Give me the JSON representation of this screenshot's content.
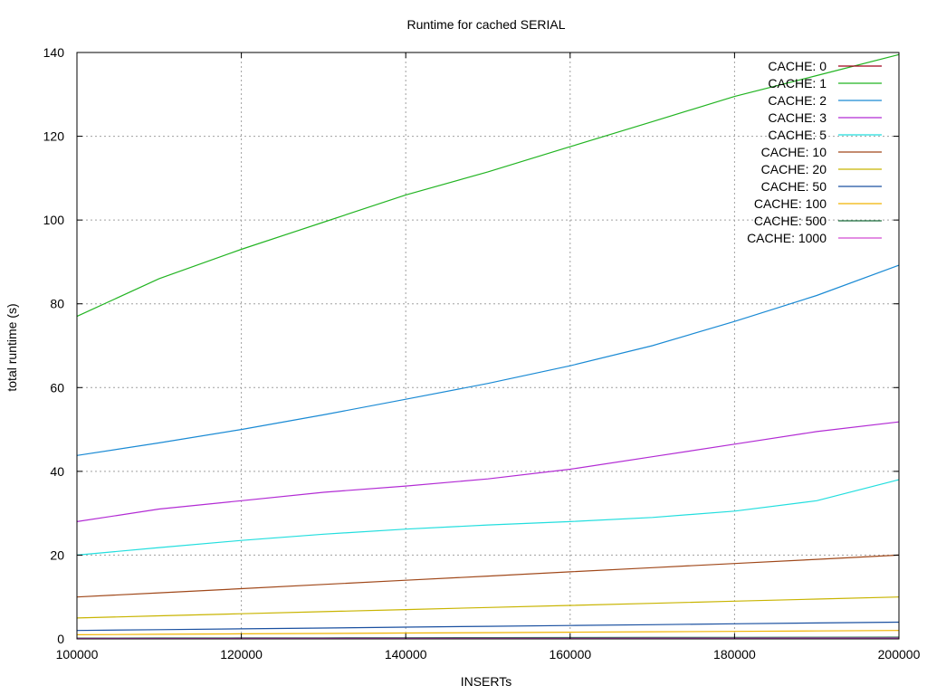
{
  "chart_data": {
    "type": "line",
    "title": "Runtime for cached SERIAL",
    "xlabel": "INSERTs",
    "ylabel": "total runtime (s)",
    "xlim": [
      100000,
      200000
    ],
    "ylim": [
      0,
      140
    ],
    "x_ticks": [
      100000,
      120000,
      140000,
      160000,
      180000,
      200000
    ],
    "y_ticks": [
      0,
      20,
      40,
      60,
      80,
      100,
      120,
      140
    ],
    "grid": true,
    "legend_position": "top-right",
    "x": [
      100000,
      110000,
      120000,
      130000,
      140000,
      150000,
      160000,
      170000,
      180000,
      190000,
      200000
    ],
    "series": [
      {
        "name": "CACHE: 0",
        "color": "#a0001a",
        "x": [
          144000,
          150000,
          160000,
          170000,
          180000,
          190000,
          200000
        ],
        "values": [
          0.1,
          0.1,
          0.1,
          0.1,
          0.1,
          0.1,
          0.1
        ]
      },
      {
        "name": "CACHE: 1",
        "color": "#22b422",
        "values": [
          77,
          86,
          93,
          99.5,
          106,
          111.5,
          117.5,
          123.5,
          129.5,
          134.5,
          139.5
        ]
      },
      {
        "name": "CACHE: 2",
        "color": "#1a8ad4",
        "values": [
          43.8,
          46.8,
          50,
          53.5,
          57.2,
          61,
          65.2,
          70,
          75.8,
          82,
          89.2
        ]
      },
      {
        "name": "CACHE: 3",
        "color": "#b22bd4",
        "values": [
          28,
          31,
          33,
          35,
          36.5,
          38.2,
          40.5,
          43.5,
          46.5,
          49.5,
          51.8
        ]
      },
      {
        "name": "CACHE: 5",
        "color": "#22dede",
        "values": [
          20,
          21.8,
          23.5,
          25,
          26.2,
          27.2,
          28,
          29,
          30.5,
          33,
          38
        ]
      },
      {
        "name": "CACHE: 10",
        "color": "#a0481a",
        "values": [
          10,
          11,
          12,
          13,
          14,
          15,
          16,
          17,
          18,
          19,
          20
        ]
      },
      {
        "name": "CACHE: 20",
        "color": "#c8b400",
        "values": [
          5,
          5.5,
          6,
          6.5,
          7,
          7.5,
          8,
          8.5,
          9,
          9.5,
          10
        ]
      },
      {
        "name": "CACHE: 50",
        "color": "#1a50a0",
        "values": [
          2,
          2.2,
          2.4,
          2.6,
          2.8,
          3,
          3.2,
          3.4,
          3.6,
          3.8,
          4
        ]
      },
      {
        "name": "CACHE: 100",
        "color": "#f0b400",
        "values": [
          1,
          1.1,
          1.2,
          1.3,
          1.4,
          1.5,
          1.6,
          1.7,
          1.8,
          1.9,
          2
        ]
      },
      {
        "name": "CACHE: 500",
        "color": "#1a6e3c",
        "values": [
          0.2,
          0.22,
          0.24,
          0.26,
          0.28,
          0.3,
          0.32,
          0.34,
          0.36,
          0.38,
          0.4
        ]
      },
      {
        "name": "CACHE: 1000",
        "color": "#d24ad2",
        "values": [
          0.1,
          0.11,
          0.12,
          0.13,
          0.14,
          0.15,
          0.16,
          0.17,
          0.18,
          0.19,
          0.2
        ]
      }
    ]
  }
}
